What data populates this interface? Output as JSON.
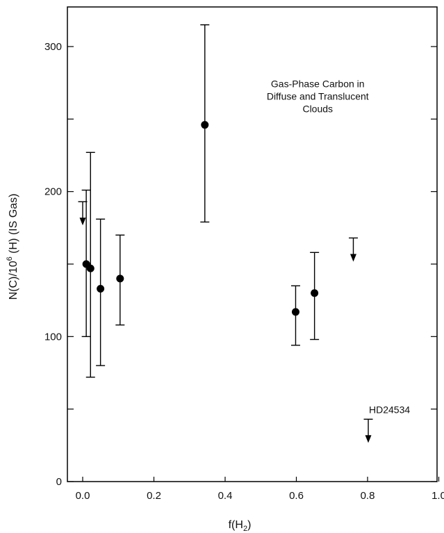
{
  "chart_data": {
    "type": "scatter",
    "title": "",
    "xlabel": "f(H",
    "xlabel_sub": "2",
    "xlabel_close": ")",
    "ylabel": "N(C)/10",
    "ylabel_sup": "6",
    "ylabel_rest": " (H) (IS Gas)",
    "xlim": [
      -0.05,
      1.0
    ],
    "ylim": [
      0,
      325
    ],
    "x_ticks": [
      0.0,
      0.2,
      0.4,
      0.6,
      0.8,
      1.0
    ],
    "x_tick_labels": [
      "0.0",
      "0.2",
      "0.4",
      "0.6",
      "0.8",
      "1.0"
    ],
    "y_ticks": [
      0,
      50,
      100,
      150,
      200,
      250,
      300
    ],
    "y_tick_labels": [
      "0",
      "",
      "100",
      "",
      "200",
      "",
      "300"
    ],
    "grid": false,
    "annotation": {
      "lines": [
        "Gas-Phase Carbon in",
        "Diffuse and Translucent",
        "Clouds"
      ],
      "x": 0.66,
      "y": 272
    },
    "points": [
      {
        "x": 0.01,
        "y": 150,
        "lo": 100,
        "hi": 201
      },
      {
        "x": 0.022,
        "y": 147,
        "lo": 72,
        "hi": 227
      },
      {
        "x": 0.05,
        "y": 133,
        "lo": 80,
        "hi": 181
      },
      {
        "x": 0.105,
        "y": 140,
        "lo": 108,
        "hi": 170
      },
      {
        "x": 0.343,
        "y": 246,
        "lo": 179,
        "hi": 315
      },
      {
        "x": 0.598,
        "y": 117,
        "lo": 94,
        "hi": 135
      },
      {
        "x": 0.651,
        "y": 130,
        "lo": 98,
        "hi": 158
      }
    ],
    "upper_limits": [
      {
        "x": 0.0,
        "y": 193,
        "label": ""
      },
      {
        "x": 0.76,
        "y": 168,
        "label": ""
      },
      {
        "x": 0.802,
        "y": 43,
        "label": "HD24534"
      }
    ]
  }
}
